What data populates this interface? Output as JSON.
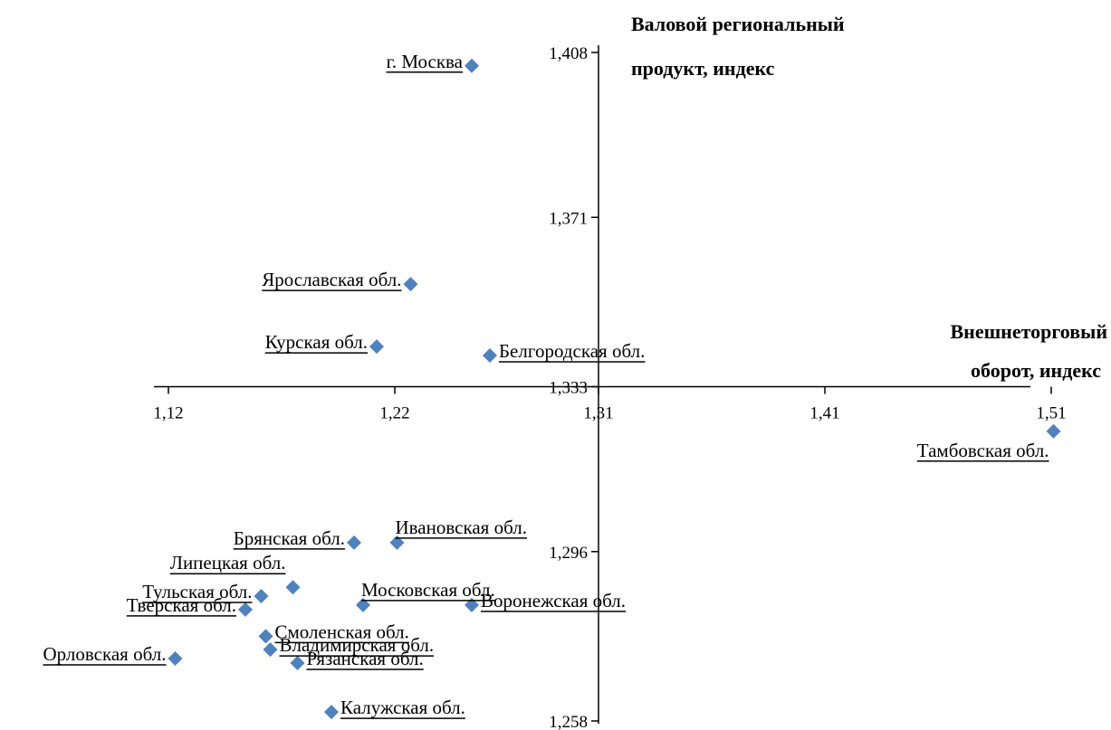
{
  "chart_data": {
    "type": "scatter",
    "xlabel_lines": [
      "Внешнеторговый",
      "оборот, индекс"
    ],
    "ylabel_lines": [
      "Валовой региональный",
      "продукт, индекс"
    ],
    "x_ticks": [
      {
        "value": 1.12,
        "label": "1,12"
      },
      {
        "value": 1.22,
        "label": "1,22"
      },
      {
        "value": 1.31,
        "label": "1,31"
      },
      {
        "value": 1.41,
        "label": "1,41"
      },
      {
        "value": 1.51,
        "label": "1,51"
      }
    ],
    "y_ticks": [
      {
        "value": 1.258,
        "label": "1,258"
      },
      {
        "value": 1.296,
        "label": "1,296"
      },
      {
        "value": 1.333,
        "label": "1,333"
      },
      {
        "value": 1.371,
        "label": "1,371"
      },
      {
        "value": 1.408,
        "label": "1,408"
      }
    ],
    "xlim": [
      1.11,
      1.51
    ],
    "ylim": [
      1.258,
      1.409
    ],
    "axes_cross": {
      "x": 1.31,
      "y": 1.333
    },
    "marker_color": "#4F81BD",
    "points": [
      {
        "label": "г. Москва",
        "x": 1.254,
        "y": 1.405,
        "label_pos": "left"
      },
      {
        "label": "Ярославская обл.",
        "x": 1.227,
        "y": 1.356,
        "label_pos": "left"
      },
      {
        "label": "Курская обл.",
        "x": 1.212,
        "y": 1.342,
        "label_pos": "left"
      },
      {
        "label": "Белгородская обл.",
        "x": 1.262,
        "y": 1.34,
        "label_pos": "right"
      },
      {
        "label": "Тамбовская обл.",
        "x": 1.511,
        "y": 1.323,
        "label_pos": "below-left"
      },
      {
        "label": "Брянская обл.",
        "x": 1.202,
        "y": 1.298,
        "label_pos": "left"
      },
      {
        "label": "Ивановская обл.",
        "x": 1.221,
        "y": 1.298,
        "label_pos": "above-right"
      },
      {
        "label": "Липецкая обл.",
        "x": 1.175,
        "y": 1.288,
        "label_pos": "above-left"
      },
      {
        "label": "Тульская обл.",
        "x": 1.161,
        "y": 1.286,
        "label_pos": "left"
      },
      {
        "label": "Тверская обл.",
        "x": 1.154,
        "y": 1.283,
        "label_pos": "left"
      },
      {
        "label": "Московская обл.",
        "x": 1.206,
        "y": 1.284,
        "label_pos": "above-right"
      },
      {
        "label": "Воронежская обл.",
        "x": 1.254,
        "y": 1.284,
        "label_pos": "right"
      },
      {
        "label": "Смоленская обл.",
        "x": 1.163,
        "y": 1.277,
        "label_pos": "right"
      },
      {
        "label": "Владимирская обл.",
        "x": 1.165,
        "y": 1.274,
        "label_pos": "right"
      },
      {
        "label": "Орловская обл.",
        "x": 1.123,
        "y": 1.272,
        "label_pos": "left"
      },
      {
        "label": "Рязанская обл.",
        "x": 1.177,
        "y": 1.271,
        "label_pos": "right"
      },
      {
        "label": "Калужская обл.",
        "x": 1.192,
        "y": 1.26,
        "label_pos": "right"
      }
    ]
  }
}
